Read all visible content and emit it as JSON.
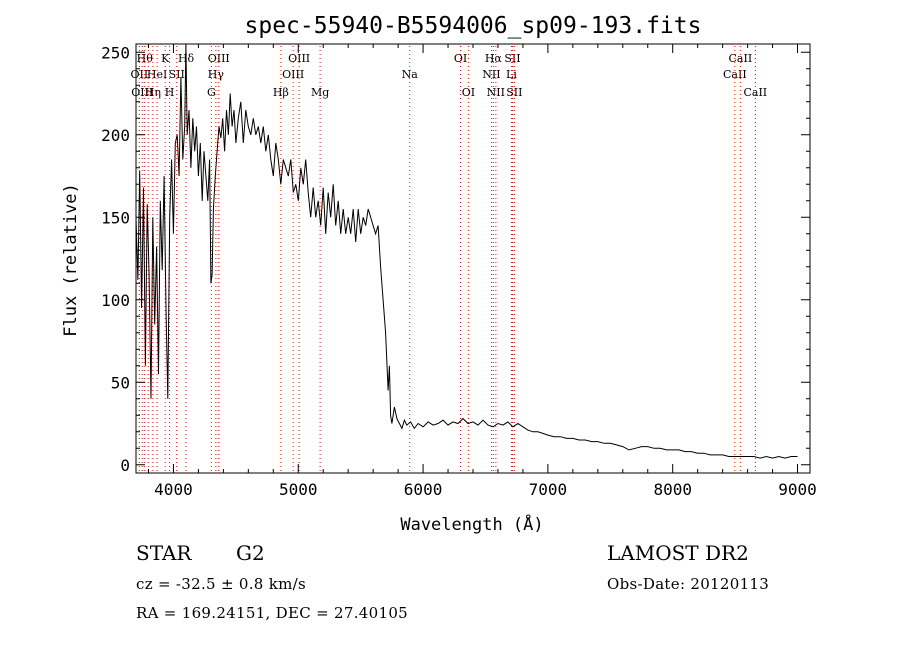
{
  "chart_data": {
    "type": "line",
    "title": "spec-55940-B5594006_sp09-193.fits",
    "xlabel": "Wavelength (Å)",
    "ylabel": "Flux (relative)",
    "xlim": [
      3700,
      9100
    ],
    "ylim": [
      -5,
      255
    ],
    "xticks": [
      4000,
      5000,
      6000,
      7000,
      8000,
      9000
    ],
    "yticks": [
      0,
      50,
      100,
      150,
      200,
      250
    ],
    "grid": false,
    "series": [
      {
        "points": [
          [
            3700,
            150
          ],
          [
            3715,
            112
          ],
          [
            3730,
            178
          ],
          [
            3745,
            95
          ],
          [
            3760,
            168
          ],
          [
            3775,
            60
          ],
          [
            3790,
            158
          ],
          [
            3805,
            115
          ],
          [
            3820,
            40
          ],
          [
            3835,
            150
          ],
          [
            3850,
            85
          ],
          [
            3865,
            132
          ],
          [
            3880,
            55
          ],
          [
            3895,
            160
          ],
          [
            3910,
            118
          ],
          [
            3925,
            175
          ],
          [
            3940,
            95
          ],
          [
            3955,
            40
          ],
          [
            3970,
            150
          ],
          [
            3985,
            185
          ],
          [
            4000,
            140
          ],
          [
            4015,
            195
          ],
          [
            4030,
            200
          ],
          [
            4045,
            175
          ],
          [
            4060,
            235
          ],
          [
            4075,
            185
          ],
          [
            4090,
            205
          ],
          [
            4100,
            255
          ],
          [
            4110,
            200
          ],
          [
            4125,
            215
          ],
          [
            4140,
            180
          ],
          [
            4155,
            210
          ],
          [
            4170,
            190
          ],
          [
            4185,
            205
          ],
          [
            4200,
            175
          ],
          [
            4215,
            195
          ],
          [
            4230,
            160
          ],
          [
            4245,
            190
          ],
          [
            4260,
            175
          ],
          [
            4275,
            160
          ],
          [
            4290,
            185
          ],
          [
            4300,
            110
          ],
          [
            4310,
            115
          ],
          [
            4320,
            155
          ],
          [
            4335,
            175
          ],
          [
            4350,
            190
          ],
          [
            4365,
            205
          ],
          [
            4380,
            198
          ],
          [
            4395,
            210
          ],
          [
            4410,
            190
          ],
          [
            4425,
            215
          ],
          [
            4440,
            200
          ],
          [
            4455,
            225
          ],
          [
            4470,
            205
          ],
          [
            4485,
            215
          ],
          [
            4500,
            195
          ],
          [
            4520,
            210
          ],
          [
            4540,
            220
          ],
          [
            4560,
            195
          ],
          [
            4580,
            215
          ],
          [
            4600,
            205
          ],
          [
            4620,
            200
          ],
          [
            4640,
            210
          ],
          [
            4660,
            200
          ],
          [
            4680,
            205
          ],
          [
            4700,
            195
          ],
          [
            4720,
            205
          ],
          [
            4740,
            190
          ],
          [
            4760,
            200
          ],
          [
            4780,
            185
          ],
          [
            4800,
            175
          ],
          [
            4820,
            195
          ],
          [
            4840,
            185
          ],
          [
            4860,
            170
          ],
          [
            4880,
            185
          ],
          [
            4900,
            180
          ],
          [
            4920,
            175
          ],
          [
            4940,
            185
          ],
          [
            4960,
            165
          ],
          [
            4980,
            170
          ],
          [
            5000,
            160
          ],
          [
            5020,
            180
          ],
          [
            5040,
            170
          ],
          [
            5060,
            185
          ],
          [
            5080,
            165
          ],
          [
            5100,
            150
          ],
          [
            5120,
            168
          ],
          [
            5140,
            150
          ],
          [
            5160,
            160
          ],
          [
            5180,
            145
          ],
          [
            5200,
            168
          ],
          [
            5220,
            140
          ],
          [
            5240,
            165
          ],
          [
            5260,
            150
          ],
          [
            5280,
            170
          ],
          [
            5300,
            145
          ],
          [
            5320,
            160
          ],
          [
            5340,
            140
          ],
          [
            5360,
            155
          ],
          [
            5380,
            140
          ],
          [
            5400,
            150
          ],
          [
            5420,
            140
          ],
          [
            5440,
            155
          ],
          [
            5460,
            135
          ],
          [
            5480,
            155
          ],
          [
            5500,
            140
          ],
          [
            5520,
            150
          ],
          [
            5540,
            145
          ],
          [
            5560,
            155
          ],
          [
            5580,
            150
          ],
          [
            5600,
            145
          ],
          [
            5620,
            140
          ],
          [
            5640,
            145
          ],
          [
            5660,
            120
          ],
          [
            5680,
            100
          ],
          [
            5700,
            80
          ],
          [
            5720,
            45
          ],
          [
            5730,
            60
          ],
          [
            5740,
            30
          ],
          [
            5750,
            25
          ],
          [
            5770,
            35
          ],
          [
            5790,
            28
          ],
          [
            5810,
            25
          ],
          [
            5830,
            22
          ],
          [
            5850,
            27
          ],
          [
            5870,
            24
          ],
          [
            5900,
            26
          ],
          [
            5930,
            22
          ],
          [
            5960,
            25
          ],
          [
            6000,
            23
          ],
          [
            6040,
            26
          ],
          [
            6080,
            24
          ],
          [
            6120,
            25
          ],
          [
            6160,
            27
          ],
          [
            6200,
            24
          ],
          [
            6240,
            26
          ],
          [
            6280,
            25
          ],
          [
            6320,
            28
          ],
          [
            6360,
            25
          ],
          [
            6400,
            26
          ],
          [
            6440,
            24
          ],
          [
            6480,
            27
          ],
          [
            6520,
            24
          ],
          [
            6560,
            23
          ],
          [
            6600,
            25
          ],
          [
            6640,
            24
          ],
          [
            6680,
            26
          ],
          [
            6720,
            23
          ],
          [
            6760,
            25
          ],
          [
            6800,
            23
          ],
          [
            6840,
            21
          ],
          [
            6880,
            20
          ],
          [
            6920,
            20
          ],
          [
            6960,
            19
          ],
          [
            7000,
            18
          ],
          [
            7050,
            17
          ],
          [
            7100,
            17
          ],
          [
            7150,
            16
          ],
          [
            7200,
            16
          ],
          [
            7250,
            15
          ],
          [
            7300,
            15
          ],
          [
            7350,
            14
          ],
          [
            7400,
            14
          ],
          [
            7450,
            13
          ],
          [
            7500,
            13
          ],
          [
            7550,
            12
          ],
          [
            7600,
            11
          ],
          [
            7650,
            9
          ],
          [
            7700,
            10
          ],
          [
            7750,
            11
          ],
          [
            7800,
            11
          ],
          [
            7850,
            10
          ],
          [
            7900,
            10
          ],
          [
            7950,
            9
          ],
          [
            8000,
            9
          ],
          [
            8050,
            9
          ],
          [
            8100,
            8
          ],
          [
            8150,
            8
          ],
          [
            8200,
            7
          ],
          [
            8250,
            7
          ],
          [
            8300,
            6
          ],
          [
            8350,
            6
          ],
          [
            8400,
            6
          ],
          [
            8450,
            5
          ],
          [
            8500,
            5
          ],
          [
            8550,
            5
          ],
          [
            8600,
            5
          ],
          [
            8650,
            5
          ],
          [
            8700,
            4
          ],
          [
            8750,
            5
          ],
          [
            8800,
            4
          ],
          [
            8850,
            5
          ],
          [
            8900,
            4
          ],
          [
            8950,
            5
          ],
          [
            9000,
            5
          ]
        ]
      }
    ],
    "line_color": "#000000",
    "marker_color": "#ff0000",
    "line_markers": [
      {
        "x": 3727,
        "label": "OII",
        "row": 1
      },
      {
        "x": 3750,
        "label": "OIII",
        "row": 2
      },
      {
        "x": 3770,
        "label": "Hθ",
        "row": 0
      },
      {
        "x": 3798,
        "label": "",
        "row": 0
      },
      {
        "x": 3835,
        "label": "Hη",
        "row": 2
      },
      {
        "x": 3869,
        "label": "HeI",
        "row": 1
      },
      {
        "x": 3934,
        "label": "K",
        "row": 0
      },
      {
        "x": 3969,
        "label": "H",
        "row": 2
      },
      {
        "x": 4026,
        "label": "SII",
        "row": 1
      },
      {
        "x": 4101,
        "label": "Hδ",
        "row": 0
      },
      {
        "x": 4304,
        "label": "G",
        "row": 2
      },
      {
        "x": 4340,
        "label": "Hγ",
        "row": 1
      },
      {
        "x": 4363,
        "label": "OIII",
        "row": 0
      },
      {
        "x": 4861,
        "label": "Hβ",
        "row": 2
      },
      {
        "x": 4959,
        "label": "OIII",
        "row": 1
      },
      {
        "x": 5007,
        "label": "OIII",
        "row": 0
      },
      {
        "x": 5175,
        "label": "Mg",
        "row": 2
      },
      {
        "x": 5893,
        "label": "Na",
        "row": 1
      },
      {
        "x": 6300,
        "label": "OI",
        "row": 0
      },
      {
        "x": 6363,
        "label": "OI",
        "row": 2
      },
      {
        "x": 6548,
        "label": "NII",
        "row": 1
      },
      {
        "x": 6563,
        "label": "Hα",
        "row": 0
      },
      {
        "x": 6583,
        "label": "NII",
        "row": 2
      },
      {
        "x": 6708,
        "label": "Li",
        "row": 1
      },
      {
        "x": 6716,
        "label": "SII",
        "row": 0
      },
      {
        "x": 6731,
        "label": "SII",
        "row": 2
      },
      {
        "x": 8498,
        "label": "CaII",
        "row": 1
      },
      {
        "x": 8542,
        "label": "CaII",
        "row": 0
      },
      {
        "x": 8662,
        "label": "CaII",
        "row": 2
      }
    ]
  },
  "info": {
    "object_type": "STAR",
    "subclass": "G2",
    "survey": "LAMOST DR2",
    "velocity": "cz = -32.5 ± 0.8 km/s",
    "obs_date": "Obs-Date: 20120113",
    "coords": "RA = 169.24151, DEC =  27.40105"
  }
}
